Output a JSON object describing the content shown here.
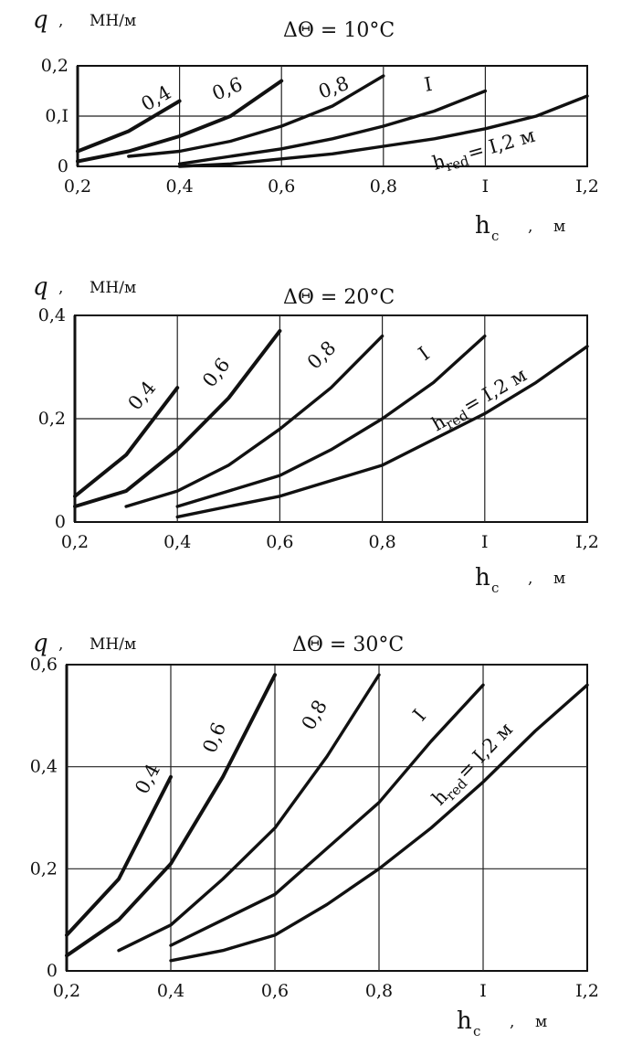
{
  "charts": [
    {
      "condition": "ΔΘ = 10°C",
      "y_symbol": "q",
      "y_unit": "МН/м",
      "x_symbol": "h",
      "x_sub": "c",
      "x_unit": "м",
      "x_tick_labels": [
        "0,2",
        "0,4",
        "0,6",
        "0,8",
        "I",
        "I,2"
      ],
      "y_tick_labels": [
        "0",
        "0,I",
        "0,2"
      ],
      "curve_labels": [
        "0,4",
        "0,6",
        "0,8",
        "I",
        "h",
        "red",
        " = I,2 м"
      ]
    },
    {
      "condition": "ΔΘ = 20°C",
      "y_symbol": "q",
      "y_unit": "МН/м",
      "x_symbol": "h",
      "x_sub": "c",
      "x_unit": "м",
      "x_tick_labels": [
        "0,2",
        "0,4",
        "0,6",
        "0,8",
        "I",
        "I,2"
      ],
      "y_tick_labels": [
        "0",
        "0,2",
        "0,4"
      ],
      "curve_labels": [
        "0,4",
        "0,6",
        "0,8",
        "I",
        "h",
        "red",
        " = I,2 м"
      ]
    },
    {
      "condition": "ΔΘ = 30°C",
      "y_symbol": "q",
      "y_unit": "МН/м",
      "x_symbol": "h",
      "x_sub": "c",
      "x_unit": "м",
      "x_tick_labels": [
        "0,2",
        "0,4",
        "0,6",
        "0,8",
        "I",
        "I,2"
      ],
      "y_tick_labels": [
        "0",
        "0,2",
        "0,4",
        "0,6"
      ],
      "curve_labels": [
        "0,4",
        "0,6",
        "0,8",
        "I",
        "h",
        "red",
        " = I,2 м"
      ]
    }
  ],
  "chart_data": [
    {
      "type": "line",
      "xlim": [
        0.2,
        1.2
      ],
      "ylim": [
        0,
        0.2
      ],
      "x_ticks": [
        0.2,
        0.4,
        0.6,
        0.8,
        1.0,
        1.2
      ],
      "y_ticks": [
        0,
        0.1,
        0.2
      ],
      "grid": true,
      "series": [
        {
          "name": "0,4",
          "x": [
            0.2,
            0.3,
            0.4
          ],
          "y": [
            0.03,
            0.07,
            0.13
          ]
        },
        {
          "name": "0,6",
          "x": [
            0.2,
            0.3,
            0.4,
            0.5,
            0.6
          ],
          "y": [
            0.01,
            0.03,
            0.06,
            0.1,
            0.17
          ]
        },
        {
          "name": "0,8",
          "x": [
            0.3,
            0.4,
            0.5,
            0.6,
            0.7,
            0.8
          ],
          "y": [
            0.02,
            0.03,
            0.05,
            0.08,
            0.12,
            0.18
          ]
        },
        {
          "name": "I",
          "x": [
            0.4,
            0.5,
            0.6,
            0.7,
            0.8,
            0.9,
            1.0
          ],
          "y": [
            0.005,
            0.02,
            0.035,
            0.055,
            0.08,
            0.11,
            0.15
          ]
        },
        {
          "name": "I,2",
          "x": [
            0.4,
            0.5,
            0.6,
            0.7,
            0.8,
            0.9,
            1.0,
            1.1,
            1.2
          ],
          "y": [
            0.0,
            0.005,
            0.015,
            0.025,
            0.04,
            0.055,
            0.075,
            0.1,
            0.14
          ]
        }
      ]
    },
    {
      "type": "line",
      "xlim": [
        0.2,
        1.2
      ],
      "ylim": [
        0,
        0.4
      ],
      "x_ticks": [
        0.2,
        0.4,
        0.6,
        0.8,
        1.0,
        1.2
      ],
      "y_ticks": [
        0,
        0.2,
        0.4
      ],
      "grid": true,
      "series": [
        {
          "name": "0,4",
          "x": [
            0.2,
            0.3,
            0.4
          ],
          "y": [
            0.05,
            0.13,
            0.26
          ]
        },
        {
          "name": "0,6",
          "x": [
            0.2,
            0.3,
            0.4,
            0.5,
            0.6
          ],
          "y": [
            0.03,
            0.06,
            0.14,
            0.24,
            0.37
          ]
        },
        {
          "name": "0,8",
          "x": [
            0.3,
            0.4,
            0.5,
            0.6,
            0.7,
            0.8
          ],
          "y": [
            0.03,
            0.06,
            0.11,
            0.18,
            0.26,
            0.36
          ]
        },
        {
          "name": "I",
          "x": [
            0.4,
            0.5,
            0.6,
            0.7,
            0.8,
            0.9,
            1.0
          ],
          "y": [
            0.03,
            0.06,
            0.09,
            0.14,
            0.2,
            0.27,
            0.36
          ]
        },
        {
          "name": "I,2",
          "x": [
            0.4,
            0.5,
            0.6,
            0.7,
            0.8,
            0.9,
            1.0,
            1.1,
            1.2
          ],
          "y": [
            0.01,
            0.03,
            0.05,
            0.08,
            0.11,
            0.16,
            0.21,
            0.27,
            0.34
          ]
        }
      ]
    },
    {
      "type": "line",
      "xlim": [
        0.2,
        1.2
      ],
      "ylim": [
        0,
        0.6
      ],
      "x_ticks": [
        0.2,
        0.4,
        0.6,
        0.8,
        1.0,
        1.2
      ],
      "y_ticks": [
        0,
        0.2,
        0.4,
        0.6
      ],
      "grid": true,
      "series": [
        {
          "name": "0,4",
          "x": [
            0.2,
            0.3,
            0.4
          ],
          "y": [
            0.07,
            0.18,
            0.38
          ]
        },
        {
          "name": "0,6",
          "x": [
            0.2,
            0.3,
            0.4,
            0.5,
            0.6
          ],
          "y": [
            0.03,
            0.1,
            0.21,
            0.38,
            0.58
          ]
        },
        {
          "name": "0,8",
          "x": [
            0.3,
            0.4,
            0.5,
            0.6,
            0.7,
            0.8
          ],
          "y": [
            0.04,
            0.09,
            0.18,
            0.28,
            0.42,
            0.58
          ]
        },
        {
          "name": "I",
          "x": [
            0.4,
            0.5,
            0.6,
            0.7,
            0.8,
            0.9,
            1.0
          ],
          "y": [
            0.05,
            0.1,
            0.15,
            0.24,
            0.33,
            0.45,
            0.56
          ]
        },
        {
          "name": "I,2",
          "x": [
            0.4,
            0.5,
            0.6,
            0.7,
            0.8,
            0.9,
            1.0,
            1.1,
            1.2
          ],
          "y": [
            0.02,
            0.04,
            0.07,
            0.13,
            0.2,
            0.28,
            0.37,
            0.47,
            0.56
          ]
        }
      ]
    }
  ]
}
